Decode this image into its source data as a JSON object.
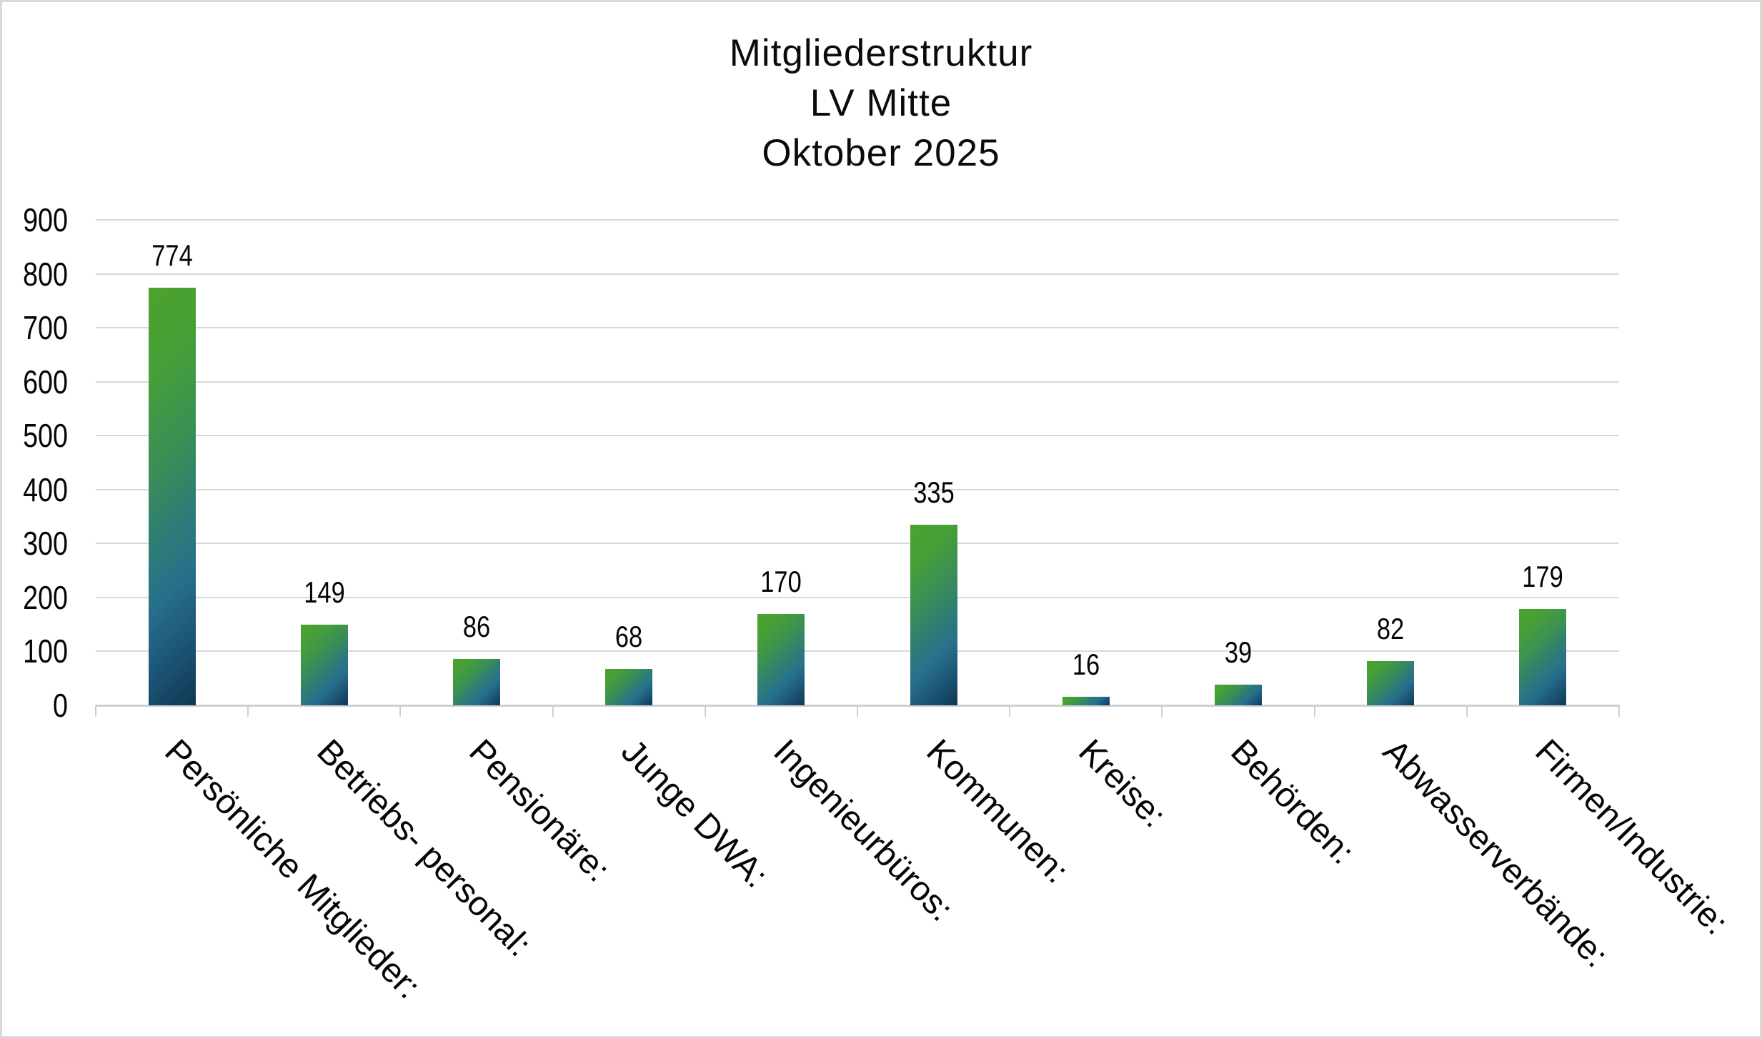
{
  "chart_data": {
    "type": "bar",
    "title_lines": [
      "Mitgliederstruktur",
      "LV Mitte",
      "Oktober 2025"
    ],
    "categories": [
      "Persönliche Mitglieder:",
      "Betriebs- personal:",
      "Pensionäre:",
      "Junge DWA:",
      "Ingenieurbüros:",
      "Kommunen:",
      "Kreise:",
      "Behörden:",
      "Abwasserverbände:",
      "Firmen/Industrie:"
    ],
    "values": [
      774,
      149,
      86,
      68,
      170,
      335,
      16,
      39,
      82,
      179
    ],
    "data_labels": [
      "774",
      "149",
      "86",
      "68",
      "170",
      "335",
      "16",
      "39",
      "82",
      "179"
    ],
    "ylabel": "",
    "xlabel": "",
    "ylim": [
      0,
      900
    ],
    "ytick_step": 100,
    "ytick_labels": [
      "0",
      "100",
      "200",
      "300",
      "400",
      "500",
      "600",
      "700",
      "800",
      "900"
    ],
    "grid": "horizontal",
    "legend": "none",
    "bar_gradient_stops": [
      {
        "color": "#4CA22D",
        "pos": 0
      },
      {
        "color": "#47A036",
        "pos": 18
      },
      {
        "color": "#3A8F55",
        "pos": 40
      },
      {
        "color": "#2E7D74",
        "pos": 56
      },
      {
        "color": "#27708C",
        "pos": 70
      },
      {
        "color": "#1A5071",
        "pos": 87
      },
      {
        "color": "#0E3850",
        "pos": 100
      }
    ],
    "gridline_color": "#D9D9D9",
    "axis_color": "#CDD0D3",
    "text_color": "#000000",
    "frame_border_color": "#D9D9D9"
  }
}
